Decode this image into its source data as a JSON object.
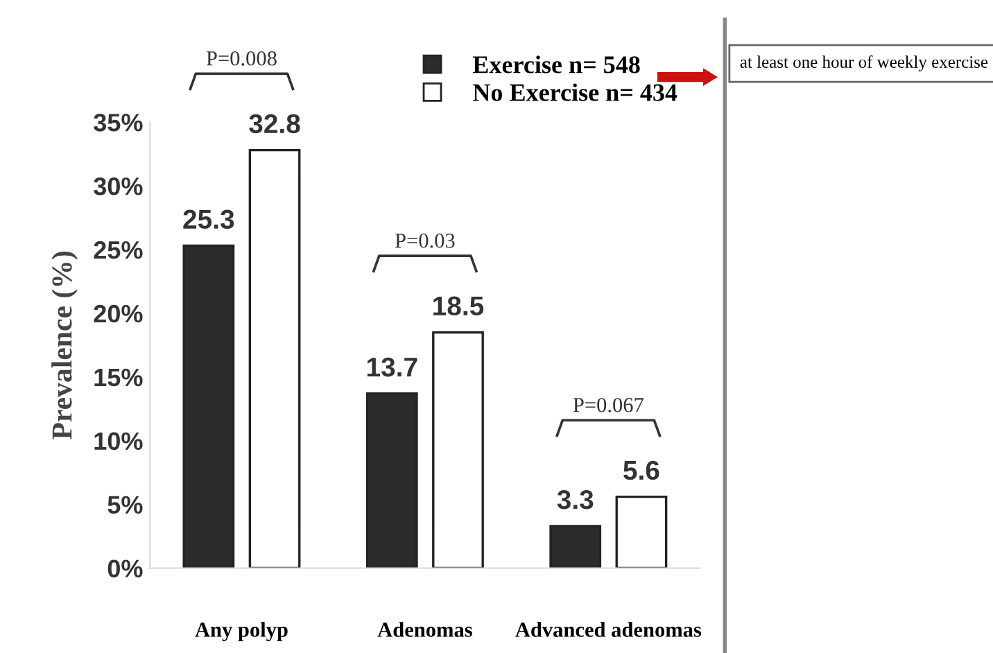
{
  "chart_data": {
    "type": "bar",
    "ylabel": "Prevalence (%)",
    "categories": [
      "Any polyp",
      "Adenomas",
      "Advanced adenomas"
    ],
    "series": [
      {
        "name": "Exercise n= 548",
        "color": "#2b2b2b",
        "values": [
          25.3,
          13.7,
          3.3
        ]
      },
      {
        "name": "No Exercise n= 434",
        "color": "#ffffff",
        "values": [
          32.8,
          18.5,
          5.6
        ]
      }
    ],
    "ylim": [
      0,
      35
    ],
    "yticks": [
      {
        "value": 0,
        "label": "0%"
      },
      {
        "value": 5,
        "label": "5%"
      },
      {
        "value": 10,
        "label": "10%"
      },
      {
        "value": 15,
        "label": "15%"
      },
      {
        "value": 20,
        "label": "20%"
      },
      {
        "value": 25,
        "label": "25%"
      },
      {
        "value": 30,
        "label": "30%"
      },
      {
        "value": 35,
        "label": "35%"
      }
    ],
    "data_labels": true,
    "grid": false,
    "legend": "top right",
    "marker": "square",
    "annotations": [
      "P=0.008",
      "P=0.03",
      "P=0.067",
      "at least one hour of weekly exercise"
    ]
  }
}
